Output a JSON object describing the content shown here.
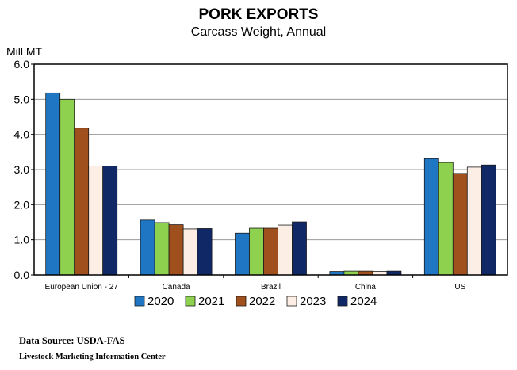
{
  "chart_data": {
    "type": "bar",
    "title": "PORK EXPORTS",
    "subtitle": "Carcass Weight, Annual",
    "ylabel": "Mill MT",
    "xlabel": "",
    "ylim": [
      0,
      6
    ],
    "yticks": [
      "0.0",
      "1.0",
      "2.0",
      "3.0",
      "4.0",
      "5.0",
      "6.0"
    ],
    "grid": true,
    "legend_position": "bottom",
    "categories": [
      "European Union - 27",
      "Canada",
      "Brazil",
      "China",
      "US"
    ],
    "series": [
      {
        "name": "2020",
        "color": "#1F77C4",
        "values": [
          5.18,
          1.56,
          1.19,
          0.1,
          3.31
        ]
      },
      {
        "name": "2021",
        "color": "#8ED14E",
        "values": [
          5.0,
          1.49,
          1.33,
          0.11,
          3.2
        ]
      },
      {
        "name": "2022",
        "color": "#A0501C",
        "values": [
          4.18,
          1.43,
          1.33,
          0.11,
          2.89
        ]
      },
      {
        "name": "2023",
        "color": "#FCEEE4",
        "values": [
          3.1,
          1.31,
          1.42,
          0.1,
          3.07
        ]
      },
      {
        "name": "2024",
        "color": "#102866",
        "values": [
          3.1,
          1.32,
          1.51,
          0.11,
          3.13
        ]
      }
    ]
  },
  "source": {
    "line1": "Data Source:  USDA-FAS",
    "line2": "Livestock Marketing Information  Center"
  }
}
